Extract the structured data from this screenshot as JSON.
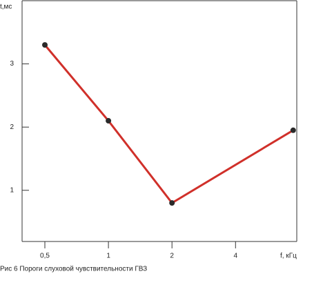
{
  "chart_data": {
    "type": "line",
    "y_label": "t,мс",
    "x_label": "f, кГц",
    "caption": "Рис 6 Пороги слуховой чувствительности ГВЗ",
    "x": [
      0.5,
      1,
      2,
      7.5
    ],
    "series": [
      {
        "color": "#d0302a",
        "values": [
          3.3,
          2.1,
          0.8,
          1.95
        ]
      }
    ],
    "xscale": "log",
    "xlim": [
      0.39,
      7.8
    ],
    "xticks": [
      {
        "value": 0.5,
        "label": "0,5"
      },
      1,
      2,
      4
    ],
    "ylim": [
      0.19,
      4.0
    ],
    "yticks": [
      1,
      2,
      3
    ],
    "marker_color": "#2a2a2a"
  }
}
